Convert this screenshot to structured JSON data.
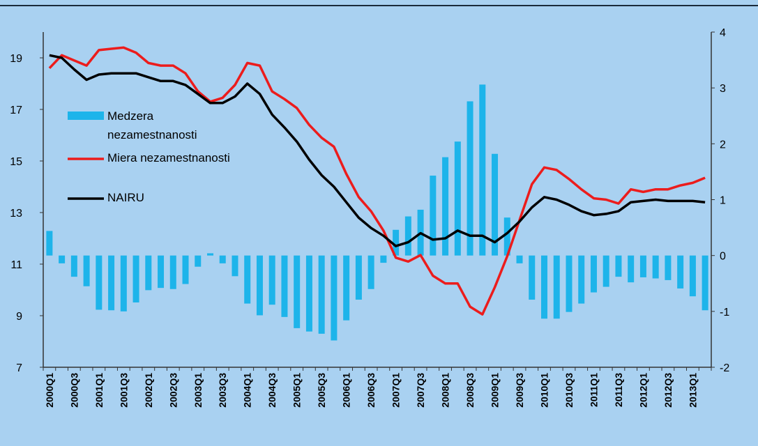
{
  "chart_data": {
    "type": "bar",
    "categories": [
      "2000Q1",
      null,
      "2000Q3",
      null,
      "2001Q1",
      null,
      "2001Q3",
      null,
      "2002Q1",
      null,
      "2002Q3",
      null,
      "2003Q1",
      null,
      "2003Q3",
      null,
      "2004Q1",
      null,
      "2004Q3",
      null,
      "2005Q1",
      null,
      "2005Q3",
      null,
      "2006Q1",
      null,
      "2006Q3",
      null,
      "2007Q1",
      null,
      "2007Q3",
      null,
      "2008Q1",
      null,
      "2008Q3",
      null,
      "2009Q1",
      null,
      "2009Q3",
      null,
      "2010Q1",
      null,
      "2010Q3",
      null,
      "2011Q1",
      null,
      "2011Q3",
      null,
      "2012Q1",
      null,
      "2012Q3",
      null,
      "2013Q1",
      null
    ],
    "series": [
      {
        "name": "Medzera nezamestnanosti",
        "type": "bar",
        "axis": "y2",
        "color": "#1db4ea",
        "values": [
          0.44,
          -0.14,
          -0.38,
          -0.55,
          -0.97,
          -0.98,
          -1.0,
          -0.84,
          -0.62,
          -0.58,
          -0.6,
          -0.51,
          -0.2,
          0.04,
          -0.14,
          -0.37,
          -0.86,
          -1.07,
          -0.88,
          -1.1,
          -1.3,
          -1.36,
          -1.4,
          -1.52,
          -1.16,
          -0.79,
          -0.6,
          -0.13,
          0.46,
          0.7,
          0.82,
          1.43,
          1.76,
          2.04,
          2.76,
          3.06,
          1.82,
          0.68,
          -0.14,
          -0.79,
          -1.13,
          -1.13,
          -1.01,
          -0.86,
          -0.66,
          -0.56,
          -0.38,
          -0.48,
          -0.39,
          -0.41,
          -0.44,
          -0.59,
          -0.73,
          -0.98
        ]
      },
      {
        "name": "Miera nezamestnanosti",
        "type": "line",
        "color": "#ec1c1c",
        "values": [
          18.6,
          19.1,
          18.9,
          18.7,
          19.3,
          19.35,
          19.4,
          19.2,
          18.8,
          18.7,
          18.7,
          18.4,
          17.7,
          17.3,
          17.45,
          17.95,
          18.8,
          18.7,
          17.7,
          17.4,
          17.05,
          16.4,
          15.9,
          15.55,
          14.5,
          13.6,
          13.05,
          12.3,
          11.25,
          11.1,
          11.35,
          10.55,
          10.25,
          10.25,
          9.35,
          9.05,
          10.1,
          11.3,
          12.7,
          14.1,
          14.75,
          14.65,
          14.3,
          13.9,
          13.55,
          13.5,
          13.35,
          13.9,
          13.8,
          13.9,
          13.9,
          14.05,
          14.15,
          14.35
        ]
      },
      {
        "name": "NAIRU",
        "type": "line",
        "color": "#000000",
        "values": [
          19.1,
          19.0,
          18.55,
          18.15,
          18.35,
          18.4,
          18.4,
          18.4,
          18.25,
          18.1,
          18.1,
          17.95,
          17.6,
          17.25,
          17.25,
          17.5,
          18.0,
          17.6,
          16.8,
          16.3,
          15.75,
          15.05,
          14.45,
          14.0,
          13.4,
          12.8,
          12.4,
          12.1,
          11.7,
          11.85,
          12.2,
          11.95,
          12.0,
          12.3,
          12.1,
          12.1,
          11.85,
          12.2,
          12.65,
          13.2,
          13.6,
          13.5,
          13.3,
          13.05,
          12.9,
          12.95,
          13.05,
          13.4,
          13.45,
          13.5,
          13.45,
          13.45,
          13.45,
          13.4
        ]
      }
    ],
    "ylim": [
      7,
      20
    ],
    "yticks": [
      7,
      9,
      11,
      13,
      15,
      17,
      19
    ],
    "y2lim": [
      -2,
      4
    ],
    "y2ticks": [
      -2,
      -1,
      0,
      1,
      2,
      3,
      4
    ]
  }
}
